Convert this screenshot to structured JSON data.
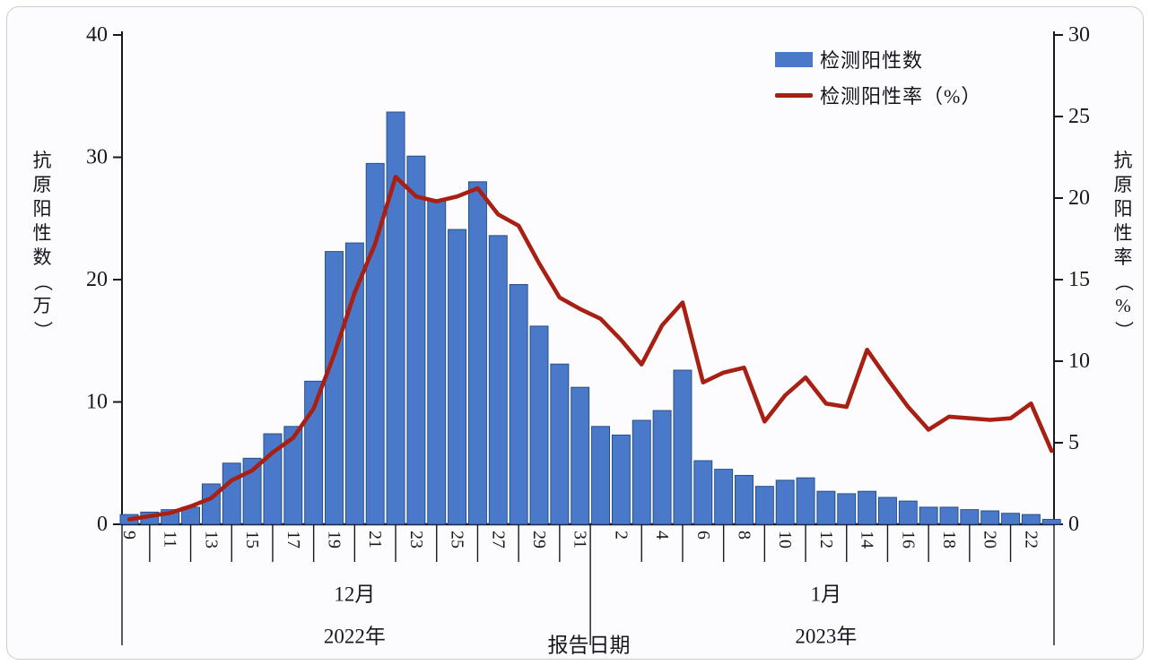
{
  "legend": {
    "items": [
      {
        "label": "检测阳性数",
        "swatch": "bar",
        "color": "#4a79ca"
      },
      {
        "label": "检测阳性率（%）",
        "swatch": "line",
        "color": "#a82014"
      }
    ]
  },
  "chart_data": {
    "type": "bar+line",
    "title": "",
    "left_axis": {
      "title": "抗原阳性数（万）",
      "min": 0,
      "max": 40,
      "ticks": [
        0,
        10,
        20,
        30,
        40
      ]
    },
    "right_axis": {
      "title": "抗原阳性率（%）",
      "min": 0,
      "max": 30,
      "ticks": [
        0,
        5,
        10,
        15,
        20,
        25,
        30
      ]
    },
    "x_axis": {
      "title": "报告日期",
      "groups": [
        {
          "month": "12月",
          "year": "2022年",
          "day_start": 9,
          "day_end": 31,
          "labeled_days": [
            9,
            11,
            13,
            15,
            17,
            19,
            21,
            23,
            25,
            27,
            29,
            31
          ],
          "tick_days": [
            10,
            12,
            14,
            16,
            18,
            20,
            22,
            24,
            26,
            28,
            30
          ]
        },
        {
          "month": "1月",
          "year": "2023年",
          "day_start": 1,
          "day_end": 23,
          "labeled_days": [
            2,
            4,
            6,
            8,
            10,
            12,
            14,
            16,
            18,
            20,
            22
          ],
          "tick_days": [
            3,
            5,
            7,
            9,
            11,
            13,
            15,
            17,
            19,
            21
          ]
        }
      ]
    },
    "series": [
      {
        "name": "检测阳性数",
        "type": "bar",
        "axis": "left",
        "color": "#4a79ca",
        "edge_color": "#20497e",
        "values": [
          0.8,
          1.0,
          1.2,
          1.4,
          3.3,
          5.0,
          5.4,
          7.4,
          8.0,
          11.7,
          22.3,
          23.0,
          29.5,
          33.7,
          30.1,
          26.4,
          24.1,
          28.0,
          23.6,
          19.6,
          16.2,
          13.1,
          11.2,
          8.0,
          7.3,
          8.5,
          9.3,
          12.6,
          5.2,
          4.5,
          4.0,
          3.1,
          3.6,
          3.8,
          2.7,
          2.5,
          2.7,
          2.2,
          1.9,
          1.4,
          1.4,
          1.2,
          1.1,
          0.9,
          0.8,
          0.4
        ]
      },
      {
        "name": "检测阳性率（%）",
        "type": "line",
        "axis": "right",
        "color": "#a82014",
        "values": [
          0.3,
          0.5,
          0.7,
          1.1,
          1.6,
          2.7,
          3.3,
          4.4,
          5.3,
          7.1,
          10.4,
          14.2,
          17.2,
          21.3,
          20.1,
          19.8,
          20.1,
          20.6,
          19.0,
          18.3,
          16.0,
          13.9,
          13.2,
          12.6,
          11.3,
          9.8,
          12.2,
          13.6,
          8.7,
          9.3,
          9.6,
          6.3,
          7.9,
          9.0,
          7.4,
          7.2,
          10.7,
          8.9,
          7.2,
          5.8,
          6.6,
          6.5,
          6.4,
          6.5,
          7.4,
          4.5
        ]
      }
    ]
  }
}
